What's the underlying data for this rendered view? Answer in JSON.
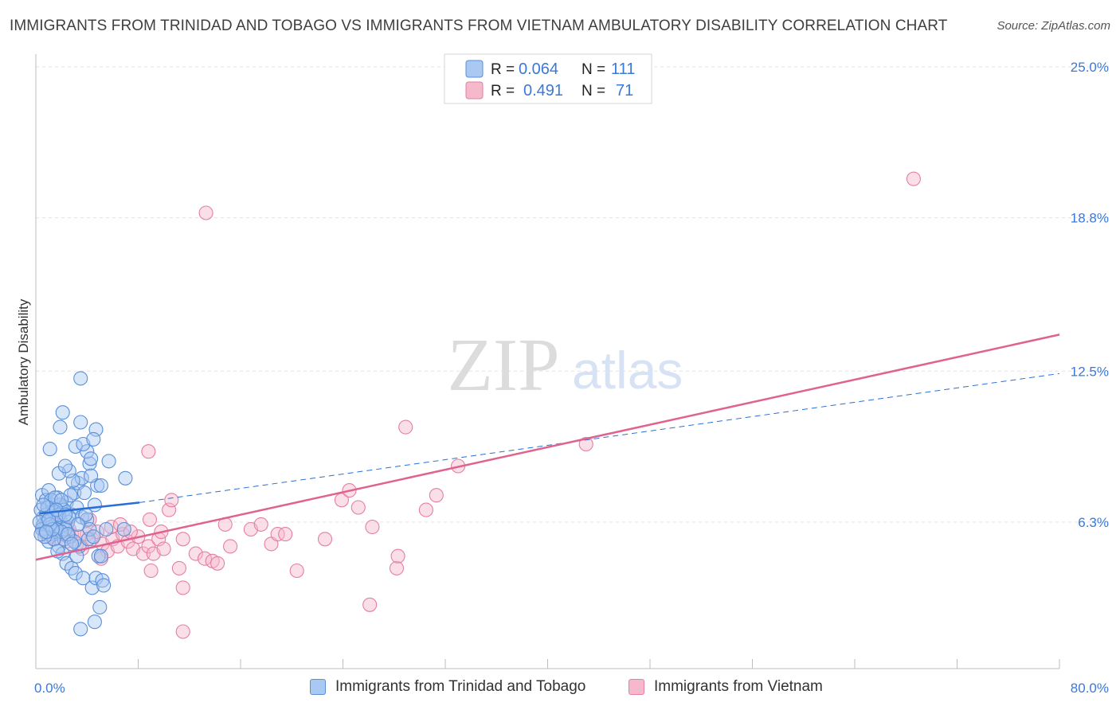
{
  "header": {
    "title": "IMMIGRANTS FROM TRINIDAD AND TOBAGO VS IMMIGRANTS FROM VIETNAM AMBULATORY DISABILITY CORRELATION CHART",
    "source": "Source: ZipAtlas.com"
  },
  "watermark": {
    "zip": "ZIP",
    "atlas": "atlas"
  },
  "colors": {
    "blue_fill": "#a9c8f2",
    "blue_stroke": "#5a8fd8",
    "blue_line": "#2a6fd6",
    "pink_fill": "#f6b8cb",
    "pink_stroke": "#e57fa0",
    "pink_line": "#e0628f",
    "tick_label": "#3b78d8",
    "grid": "#e3e3e3"
  },
  "legend": {
    "r_label": "R =",
    "n_label": "N =",
    "entries": [
      {
        "r": "0.064",
        "n": "111"
      },
      {
        "r": "0.491",
        "n": "71"
      }
    ]
  },
  "chart_data": {
    "type": "scatter",
    "xlabel": "",
    "ylabel": "Ambulatory Disability",
    "xlim": [
      0,
      80
    ],
    "ylim": [
      0,
      26
    ],
    "x_tick_labels": [
      "0.0%",
      "80.0%"
    ],
    "y_ticks": [
      6.3,
      12.5,
      18.8,
      25.0
    ],
    "y_tick_labels": [
      "6.3%",
      "12.5%",
      "18.8%",
      "25.0%"
    ],
    "series": [
      {
        "name": "Immigrants from Trinidad and Tobago",
        "r": 0.064,
        "n": 111,
        "trend": {
          "solid": [
            [
              0.3,
              6.65
            ],
            [
              8.1,
              7.1
            ]
          ],
          "dashed": [
            [
              8.1,
              7.1
            ],
            [
              80.0,
              12.4
            ]
          ]
        },
        "points": [
          [
            0.5,
            7.4
          ],
          [
            0.8,
            7.2
          ],
          [
            1.0,
            6.9
          ],
          [
            1.2,
            6.7
          ],
          [
            0.6,
            6.5
          ],
          [
            0.9,
            6.3
          ],
          [
            1.4,
            6.1
          ],
          [
            0.7,
            6.0
          ],
          [
            1.1,
            5.8
          ],
          [
            1.6,
            6.6
          ],
          [
            1.9,
            6.4
          ],
          [
            2.1,
            6.2
          ],
          [
            0.4,
            6.8
          ],
          [
            1.3,
            7.0
          ],
          [
            1.7,
            7.3
          ],
          [
            2.4,
            7.1
          ],
          [
            2.0,
            6.9
          ],
          [
            0.6,
            6.2
          ],
          [
            1.5,
            5.9
          ],
          [
            2.6,
            5.7
          ],
          [
            1.0,
            5.5
          ],
          [
            1.8,
            5.3
          ],
          [
            2.2,
            5.6
          ],
          [
            0.9,
            5.9
          ],
          [
            1.2,
            6.4
          ],
          [
            2.8,
            6.6
          ],
          [
            3.0,
            7.5
          ],
          [
            3.2,
            6.9
          ],
          [
            2.5,
            6.3
          ],
          [
            1.4,
            6.7
          ],
          [
            0.5,
            6.0
          ],
          [
            1.0,
            7.6
          ],
          [
            1.7,
            6.5
          ],
          [
            2.3,
            6.0
          ],
          [
            3.6,
            6.5
          ],
          [
            4.0,
            6.4
          ],
          [
            3.3,
            7.9
          ],
          [
            3.8,
            7.5
          ],
          [
            4.6,
            7.0
          ],
          [
            4.8,
            7.8
          ],
          [
            2.1,
            5.0
          ],
          [
            2.4,
            4.6
          ],
          [
            2.8,
            4.4
          ],
          [
            3.1,
            4.2
          ],
          [
            3.4,
            5.3
          ],
          [
            3.7,
            4.0
          ],
          [
            3.2,
            4.9
          ],
          [
            4.1,
            5.6
          ],
          [
            4.4,
            3.6
          ],
          [
            4.9,
            4.9
          ],
          [
            5.1,
            4.9
          ],
          [
            4.7,
            4.0
          ],
          [
            5.2,
            3.9
          ],
          [
            5.3,
            3.7
          ],
          [
            5.0,
            2.8
          ],
          [
            4.6,
            2.2
          ],
          [
            3.5,
            1.9
          ],
          [
            4.2,
            8.7
          ],
          [
            3.6,
            8.1
          ],
          [
            4.3,
            8.2
          ],
          [
            2.9,
            8.0
          ],
          [
            2.6,
            8.4
          ],
          [
            1.8,
            8.3
          ],
          [
            2.3,
            8.6
          ],
          [
            3.1,
            9.4
          ],
          [
            4.0,
            9.2
          ],
          [
            3.7,
            9.5
          ],
          [
            4.7,
            10.1
          ],
          [
            4.5,
            9.7
          ],
          [
            3.5,
            10.4
          ],
          [
            1.1,
            9.3
          ],
          [
            1.9,
            10.2
          ],
          [
            2.1,
            10.8
          ],
          [
            4.3,
            8.9
          ],
          [
            5.1,
            7.8
          ],
          [
            5.7,
            8.8
          ],
          [
            7.0,
            8.1
          ],
          [
            6.9,
            6.0
          ],
          [
            5.5,
            6.0
          ],
          [
            4.2,
            6.0
          ],
          [
            3.5,
            12.2
          ],
          [
            1.2,
            7.2
          ],
          [
            0.8,
            6.6
          ],
          [
            1.6,
            6.0
          ],
          [
            2.0,
            5.9
          ],
          [
            1.4,
            5.6
          ],
          [
            0.7,
            5.7
          ],
          [
            1.9,
            7.0
          ],
          [
            2.7,
            7.4
          ],
          [
            3.0,
            5.5
          ],
          [
            2.2,
            6.8
          ],
          [
            1.5,
            7.3
          ],
          [
            0.3,
            6.3
          ],
          [
            0.4,
            5.8
          ],
          [
            1.1,
            6.2
          ],
          [
            2.5,
            5.8
          ],
          [
            1.7,
            5.1
          ],
          [
            0.9,
            6.9
          ],
          [
            1.3,
            6.0
          ],
          [
            2.8,
            5.4
          ],
          [
            3.9,
            6.6
          ],
          [
            4.5,
            5.7
          ],
          [
            0.6,
            7.0
          ],
          [
            1.8,
            6.6
          ],
          [
            2.6,
            6.5
          ],
          [
            1.0,
            6.4
          ],
          [
            2.0,
            7.2
          ],
          [
            0.8,
            5.9
          ],
          [
            1.6,
            6.8
          ],
          [
            3.3,
            6.2
          ],
          [
            2.3,
            6.6
          ]
        ]
      },
      {
        "name": "Immigrants from Vietnam",
        "r": 0.491,
        "n": 71,
        "trend": {
          "solid": [
            [
              0.0,
              4.75
            ],
            [
              80.0,
              14.0
            ]
          ]
        },
        "points": [
          [
            0.5,
            6.1
          ],
          [
            0.8,
            5.8
          ],
          [
            1.2,
            6.0
          ],
          [
            1.5,
            5.6
          ],
          [
            2.0,
            5.9
          ],
          [
            2.4,
            5.5
          ],
          [
            2.8,
            5.8
          ],
          [
            3.2,
            5.4
          ],
          [
            3.6,
            5.2
          ],
          [
            4.0,
            5.8
          ],
          [
            4.4,
            5.6
          ],
          [
            4.8,
            5.9
          ],
          [
            5.2,
            5.4
          ],
          [
            5.6,
            5.1
          ],
          [
            6.0,
            5.6
          ],
          [
            6.4,
            5.3
          ],
          [
            6.8,
            5.8
          ],
          [
            7.2,
            5.5
          ],
          [
            7.6,
            5.2
          ],
          [
            8.0,
            5.7
          ],
          [
            8.4,
            5.0
          ],
          [
            8.8,
            5.3
          ],
          [
            9.2,
            5.0
          ],
          [
            9.6,
            5.6
          ],
          [
            10.0,
            5.2
          ],
          [
            1.0,
            5.7
          ],
          [
            1.8,
            6.3
          ],
          [
            2.6,
            6.0
          ],
          [
            3.4,
            5.7
          ],
          [
            4.2,
            6.4
          ],
          [
            5.1,
            4.8
          ],
          [
            5.9,
            6.1
          ],
          [
            6.6,
            6.2
          ],
          [
            7.4,
            5.9
          ],
          [
            8.9,
            6.4
          ],
          [
            9.8,
            5.9
          ],
          [
            10.4,
            6.8
          ],
          [
            10.6,
            7.2
          ],
          [
            11.5,
            5.6
          ],
          [
            12.5,
            5.0
          ],
          [
            13.2,
            4.8
          ],
          [
            13.8,
            4.7
          ],
          [
            14.2,
            4.6
          ],
          [
            14.8,
            6.2
          ],
          [
            15.2,
            5.3
          ],
          [
            16.8,
            6.0
          ],
          [
            17.6,
            6.2
          ],
          [
            18.4,
            5.4
          ],
          [
            18.9,
            5.8
          ],
          [
            19.5,
            5.8
          ],
          [
            20.4,
            4.3
          ],
          [
            22.6,
            5.6
          ],
          [
            23.9,
            7.2
          ],
          [
            24.5,
            7.6
          ],
          [
            25.2,
            6.9
          ],
          [
            26.3,
            6.1
          ],
          [
            28.2,
            4.4
          ],
          [
            28.3,
            4.9
          ],
          [
            28.9,
            10.2
          ],
          [
            30.5,
            6.8
          ],
          [
            31.3,
            7.4
          ],
          [
            33.0,
            8.6
          ],
          [
            11.2,
            4.4
          ],
          [
            11.5,
            3.6
          ],
          [
            11.5,
            1.8
          ],
          [
            9.0,
            4.3
          ],
          [
            8.8,
            9.2
          ],
          [
            13.3,
            19.0
          ],
          [
            26.1,
            2.9
          ],
          [
            68.6,
            20.4
          ],
          [
            43.0,
            9.5
          ]
        ]
      }
    ]
  },
  "bottom_legend": [
    {
      "label": "Immigrants from Trinidad and Tobago"
    },
    {
      "label": "Immigrants from Vietnam"
    }
  ]
}
